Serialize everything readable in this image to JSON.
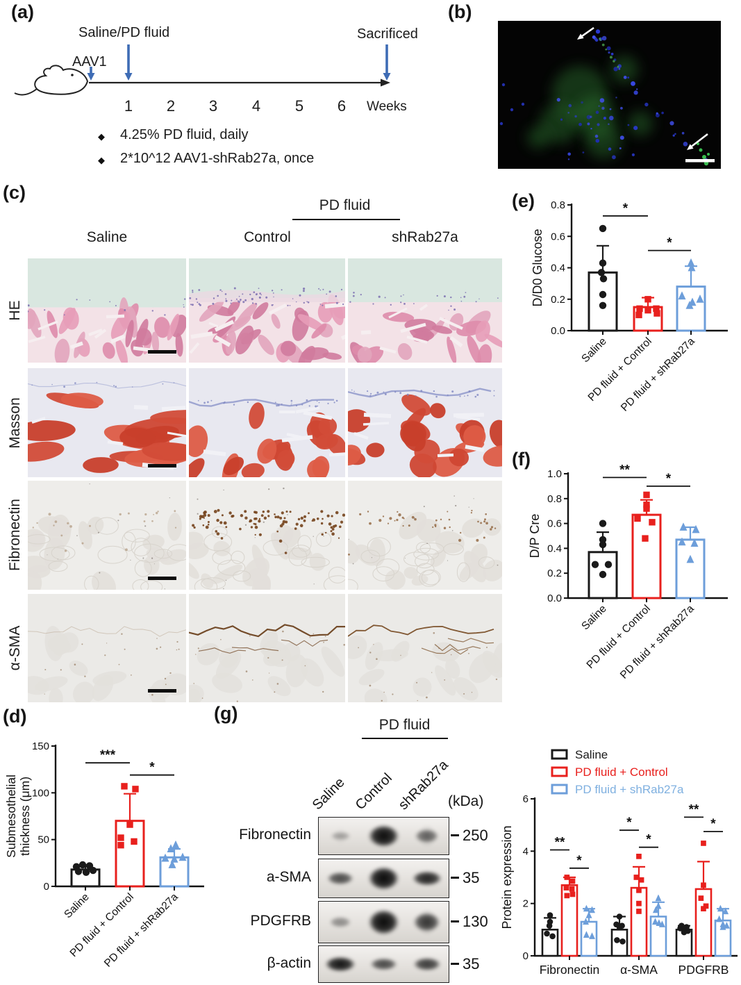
{
  "colors": {
    "saline": "#1a1a1a",
    "pd_control": "#e8201d",
    "pd_shrab27a": "#6d9eda",
    "legend_shrab_text": "#7fb0e0",
    "timeline_arrow": "#3e6cb5"
  },
  "panel_a": {
    "label": "(a)",
    "events": [
      {
        "label": "AAV1"
      },
      {
        "label": "Saline/PD fluid"
      },
      {
        "label": "Sacrificed"
      }
    ],
    "weeks": [
      "1",
      "2",
      "3",
      "4",
      "5",
      "6"
    ],
    "weeks_label": "Weeks",
    "bullets": [
      {
        "icon": "diamond",
        "text": "4.25% PD fluid, daily"
      },
      {
        "icon": "diamond",
        "text": "2*10^12 AAV1-shRab27a, once"
      }
    ]
  },
  "panel_b": {
    "label": "(b)"
  },
  "panel_c": {
    "label": "(c)",
    "group_header": "PD fluid",
    "columns": [
      "Saline",
      "Control",
      "shRab27a"
    ],
    "rows": [
      "HE",
      "Masson",
      "Fibronectin",
      "α-SMA"
    ]
  },
  "panel_d": {
    "label": "(d)"
  },
  "panel_e": {
    "label": "(e)"
  },
  "panel_f": {
    "label": "(f)"
  },
  "panel_g": {
    "label": "(g)",
    "group_header": "PD fluid",
    "lanes": [
      "Saline",
      "Control",
      "shRab27a"
    ],
    "kda_unit": "(kDa)",
    "blots": [
      {
        "protein": "Fibronectin",
        "kda": "250",
        "bands": [
          {
            "i": 0.07,
            "s": 1
          },
          {
            "i": 0.95,
            "s": 1
          },
          {
            "i": 0.4,
            "s": 1
          }
        ]
      },
      {
        "protein": "a-SMA",
        "kda": "35",
        "bands": [
          {
            "i": 0.6
          },
          {
            "i": 1.0,
            "s": 1
          },
          {
            "i": 0.85
          }
        ]
      },
      {
        "protein": "PDGFRB",
        "kda": "130",
        "bands": [
          {
            "i": 0.2
          },
          {
            "i": 1.0,
            "s": 1
          },
          {
            "i": 0.65,
            "s": 1
          }
        ]
      },
      {
        "protein": "β-actin",
        "kda": "35",
        "bands": [
          {
            "i": 0.95
          },
          {
            "i": 0.62
          },
          {
            "i": 0.7
          }
        ]
      }
    ]
  },
  "chart_data": [
    {
      "panel": "d",
      "type": "bar",
      "ylabel_lines": [
        "Submesothelial",
        "thickness (μm)"
      ],
      "ylim": [
        0,
        150
      ],
      "yticks": [
        0,
        50,
        100,
        150
      ],
      "categories": [
        "Saline",
        "PD fluid + Control",
        "PD fluid + shRab27a"
      ],
      "series_colors": [
        "saline",
        "pd_control",
        "pd_shrab27a"
      ],
      "values": [
        18,
        70,
        31
      ],
      "errors": [
        5,
        29,
        9
      ],
      "points": [
        [
          [
            -13,
            21
          ],
          [
            -4,
            23
          ],
          [
            6,
            22
          ],
          [
            -10,
            16
          ],
          [
            1,
            15
          ],
          [
            11,
            17
          ]
        ],
        [
          [
            -8,
            107
          ],
          [
            8,
            104
          ],
          [
            0,
            66
          ],
          [
            -13,
            52
          ],
          [
            -13,
            44
          ],
          [
            6,
            48
          ]
        ],
        [
          [
            2,
            44
          ],
          [
            -5,
            40
          ],
          [
            -13,
            30
          ],
          [
            0,
            29
          ],
          [
            12,
            31
          ],
          [
            -3,
            23
          ]
        ]
      ],
      "significance": [
        {
          "from": 0,
          "to": 1,
          "label": "***",
          "y": 132
        },
        {
          "from": 1,
          "to": 2,
          "label": "*",
          "y": 119
        }
      ]
    },
    {
      "panel": "e",
      "type": "bar",
      "ylabel": "D/D0 Glucose",
      "ylim": [
        0,
        0.8
      ],
      "yticks": [
        0.0,
        0.2,
        0.4,
        0.6,
        0.8
      ],
      "categories": [
        "Saline",
        "PD fluid + Control",
        "PD fluid + shRab27a"
      ],
      "series_colors": [
        "saline",
        "pd_control",
        "pd_shrab27a"
      ],
      "values": [
        0.37,
        0.15,
        0.28
      ],
      "errors": [
        0.17,
        0.06,
        0.13
      ],
      "points": [
        [
          [
            0,
            0.65
          ],
          [
            0,
            0.43
          ],
          [
            -2,
            0.37
          ],
          [
            1,
            0.33
          ],
          [
            0,
            0.23
          ],
          [
            0,
            0.16
          ]
        ],
        [
          [
            0,
            0.2
          ],
          [
            -12,
            0.14
          ],
          [
            0,
            0.13
          ],
          [
            12,
            0.14
          ],
          [
            -13,
            0.1
          ],
          [
            13,
            0.11
          ]
        ],
        [
          [
            0,
            0.43
          ],
          [
            1,
            0.4
          ],
          [
            -13,
            0.22
          ],
          [
            2,
            0.18
          ],
          [
            13,
            0.2
          ],
          [
            -2,
            0.16
          ]
        ]
      ],
      "significance": [
        {
          "from": 0,
          "to": 1,
          "label": "*",
          "y": 0.73
        },
        {
          "from": 1,
          "to": 2,
          "label": "*",
          "y": 0.51
        }
      ]
    },
    {
      "panel": "f",
      "type": "bar",
      "ylabel": "D/P Cre",
      "ylim": [
        0,
        1.0
      ],
      "yticks": [
        0.0,
        0.2,
        0.4,
        0.6,
        0.8,
        1.0
      ],
      "categories": [
        "Saline",
        "PD fluid + Control",
        "PD fluid + shRab27a"
      ],
      "series_colors": [
        "saline",
        "pd_control",
        "pd_shrab27a"
      ],
      "values": [
        0.37,
        0.67,
        0.47
      ],
      "errors": [
        0.16,
        0.12,
        0.1
      ],
      "points": [
        [
          [
            0,
            0.6
          ],
          [
            0,
            0.47
          ],
          [
            0,
            0.43
          ],
          [
            -11,
            0.27
          ],
          [
            8,
            0.27
          ],
          [
            0,
            0.19
          ]
        ],
        [
          [
            0,
            0.83
          ],
          [
            0,
            0.75
          ],
          [
            0,
            0.72
          ],
          [
            -13,
            0.64
          ],
          [
            8,
            0.61
          ],
          [
            -2,
            0.48
          ]
        ],
        [
          [
            -10,
            0.57
          ],
          [
            8,
            0.55
          ],
          [
            -12,
            0.45
          ],
          [
            6,
            0.44
          ],
          [
            0,
            0.31
          ]
        ]
      ],
      "significance": [
        {
          "from": 0,
          "to": 1,
          "label": "**",
          "y": 0.97
        },
        {
          "from": 1,
          "to": 2,
          "label": "*",
          "y": 0.9
        }
      ]
    },
    {
      "panel": "g",
      "type": "grouped_bar",
      "ylabel": "Protein expression",
      "ylim": [
        0,
        6
      ],
      "yticks": [
        0,
        2,
        4,
        6
      ],
      "categories": [
        "Fibronectin",
        "α-SMA",
        "PDGFRB"
      ],
      "legend": [
        "Saline",
        "PD fluid + Control",
        "PD fluid + shRab27a"
      ],
      "series": [
        {
          "name": "Saline",
          "color": "saline",
          "values": [
            1.0,
            1.0,
            1.0
          ],
          "errors": [
            0.45,
            0.5,
            0.15
          ],
          "points": [
            [
              [
                0,
                1.55
              ],
              [
                0,
                1.3
              ],
              [
                -1,
                1.15
              ],
              [
                -5,
                0.85
              ],
              [
                4,
                0.75
              ]
            ],
            [
              [
                0,
                1.5
              ],
              [
                -5,
                1.2
              ],
              [
                4,
                1.15
              ],
              [
                0,
                1.1
              ],
              [
                -4,
                0.6
              ],
              [
                5,
                0.55
              ]
            ],
            [
              [
                -4,
                1.15
              ],
              [
                4,
                1.1
              ],
              [
                -6,
                1.05
              ],
              [
                0,
                1.0
              ],
              [
                6,
                0.95
              ],
              [
                0,
                0.9
              ]
            ]
          ]
        },
        {
          "name": "PD fluid + Control",
          "color": "pd_control",
          "values": [
            2.7,
            2.6,
            2.55
          ],
          "errors": [
            0.3,
            0.8,
            1.05
          ],
          "points": [
            [
              [
                -4,
                3.0
              ],
              [
                5,
                2.85
              ],
              [
                -5,
                2.6
              ],
              [
                4,
                2.55
              ],
              [
                -4,
                2.3
              ],
              [
                5,
                2.35
              ]
            ],
            [
              [
                0,
                3.8
              ],
              [
                -4,
                3.0
              ],
              [
                4,
                2.9
              ],
              [
                0,
                2.5
              ],
              [
                0,
                2.0
              ],
              [
                0,
                1.7
              ]
            ],
            [
              [
                0,
                4.3
              ],
              [
                0,
                2.7
              ],
              [
                -4,
                2.2
              ],
              [
                4,
                1.9
              ],
              [
                0,
                1.8
              ]
            ]
          ]
        },
        {
          "name": "PD fluid + shRab27a",
          "color": "pd_shrab27a",
          "values": [
            1.3,
            1.5,
            1.35
          ],
          "errors": [
            0.5,
            0.55,
            0.45
          ],
          "points": [
            [
              [
                -4,
                1.8
              ],
              [
                5,
                1.75
              ],
              [
                0,
                1.55
              ],
              [
                -5,
                1.3
              ],
              [
                -4,
                0.8
              ],
              [
                5,
                0.75
              ]
            ],
            [
              [
                0,
                2.2
              ],
              [
                0,
                1.9
              ],
              [
                -4,
                1.75
              ],
              [
                -5,
                1.3
              ],
              [
                1,
                1.25
              ],
              [
                6,
                1.2
              ]
            ],
            [
              [
                -4,
                1.8
              ],
              [
                4,
                1.7
              ],
              [
                -6,
                1.4
              ],
              [
                0,
                1.2
              ],
              [
                6,
                1.15
              ],
              [
                0,
                1.1
              ]
            ]
          ]
        }
      ],
      "significance": [
        {
          "group": 0,
          "pairs": [
            {
              "from": 0,
              "to": 1,
              "label": "**",
              "y": 4.05
            },
            {
              "from": 1,
              "to": 2,
              "label": "*",
              "y": 3.35
            }
          ]
        },
        {
          "group": 1,
          "pairs": [
            {
              "from": 0,
              "to": 1,
              "label": "*",
              "y": 4.8
            },
            {
              "from": 1,
              "to": 2,
              "label": "*",
              "y": 4.15
            }
          ]
        },
        {
          "group": 2,
          "pairs": [
            {
              "from": 0,
              "to": 1,
              "label": "**",
              "y": 5.3
            },
            {
              "from": 1,
              "to": 2,
              "label": "*",
              "y": 4.75
            }
          ]
        }
      ]
    }
  ]
}
